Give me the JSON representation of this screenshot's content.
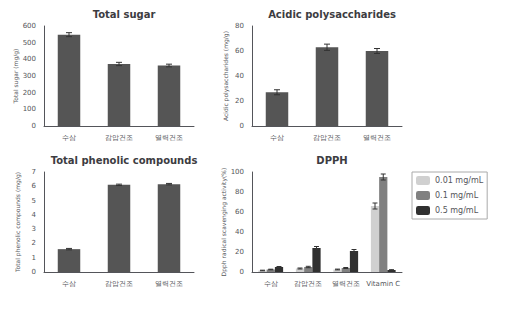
{
  "chart_data": [
    {
      "type": "bar",
      "title": "Total sugar",
      "ylabel": "Total sugar (mg/g)",
      "categories": [
        "수삼",
        "감압건조",
        "열력건조"
      ],
      "values": [
        548,
        372,
        363
      ],
      "errors": [
        12,
        10,
        8
      ],
      "color": "#555555",
      "ylim": [
        0,
        600
      ],
      "yticks": [
        0,
        100,
        200,
        300,
        400,
        500,
        600
      ],
      "grid": false
    },
    {
      "type": "bar",
      "title": "Acidic polysaccharides",
      "ylabel": "Acidic polysaccharides (mg/g)",
      "categories": [
        "수삼",
        "감압건조",
        "열력건조"
      ],
      "values": [
        27,
        63,
        60
      ],
      "errors": [
        2,
        2.5,
        2
      ],
      "color": "#555555",
      "ylim": [
        0,
        80
      ],
      "yticks": [
        0,
        20,
        40,
        60,
        80
      ],
      "grid": false
    },
    {
      "type": "bar",
      "title": "Total phenolic compounds",
      "ylabel": "Total phenolic compounds (mg/g)",
      "categories": [
        "수삼",
        "감압건조",
        "열력건조"
      ],
      "values": [
        1.6,
        6.1,
        6.15
      ],
      "errors": [
        0.05,
        0.05,
        0.05
      ],
      "color": "#555555",
      "ylim": [
        0,
        7
      ],
      "yticks": [
        0,
        1,
        2,
        3,
        4,
        5,
        6,
        7
      ],
      "grid": false
    },
    {
      "type": "bar",
      "title": "DPPH",
      "ylabel": "Dpph radical scavenging activity(%)",
      "categories": [
        "수삼",
        "감압건조",
        "열력건조",
        "Vitamin C"
      ],
      "series": [
        {
          "name": "0.01 mg/mL",
          "color": "#d0d0d0",
          "values": [
            1.5,
            3.5,
            2.5,
            66
          ],
          "errors": [
            0.3,
            0.5,
            0.4,
            3
          ]
        },
        {
          "name": "0.1 mg/mL",
          "color": "#808080",
          "values": [
            2.5,
            5,
            4,
            95
          ],
          "errors": [
            0.3,
            0.7,
            0.5,
            3
          ]
        },
        {
          "name": "0.5 mg/mL",
          "color": "#303030",
          "values": [
            5,
            24,
            21,
            2
          ],
          "errors": [
            0.5,
            1.5,
            1.5,
            0.3
          ]
        }
      ],
      "ylim": [
        0,
        100
      ],
      "yticks": [
        0,
        20,
        40,
        60,
        80,
        100
      ],
      "grid": false,
      "legend": "right"
    }
  ]
}
